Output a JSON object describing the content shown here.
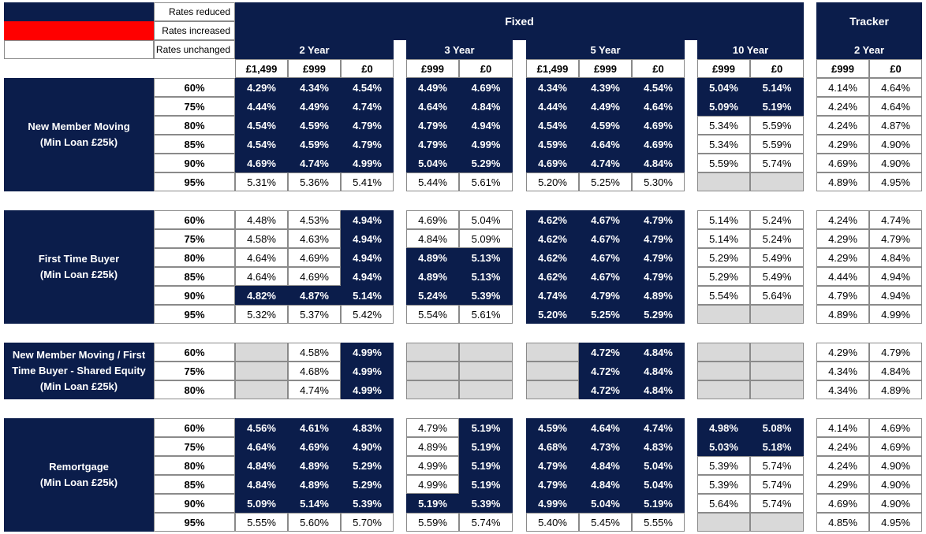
{
  "legend": {
    "reduced": {
      "label": "Rates reduced",
      "color": "#0b1d4b"
    },
    "increased": {
      "label": "Rates increased",
      "color": "#ff0000"
    },
    "unchanged": {
      "label": "Rates unchanged",
      "color": "#ffffff"
    }
  },
  "headers": {
    "fixed": "Fixed",
    "tracker": "Tracker",
    "terms": {
      "fixed2": "2 Year",
      "fixed3": "3 Year",
      "fixed5": "5 Year",
      "fixed10": "10 Year",
      "tracker2": "2 Year"
    },
    "fees": [
      "£1,499",
      "£999",
      "£0",
      "£999",
      "£0",
      "£1,499",
      "£999",
      "£0",
      "£999",
      "£0",
      "£999",
      "£0"
    ]
  },
  "colors": {
    "reduced": "#0b1d4b",
    "unchanged": "#ffffff",
    "not_available": "#d9d9d9"
  },
  "sections": [
    {
      "label": "New Member Moving\n(Min Loan £25k)",
      "rows": [
        {
          "ltv": "60%",
          "rates": [
            "4.29%",
            "4.34%",
            "4.54%",
            "4.49%",
            "4.69%",
            "4.34%",
            "4.39%",
            "4.54%",
            "5.04%",
            "5.14%",
            "4.14%",
            "4.64%"
          ],
          "status": [
            "r",
            "r",
            "r",
            "r",
            "r",
            "r",
            "r",
            "r",
            "r",
            "r",
            "u",
            "u"
          ]
        },
        {
          "ltv": "75%",
          "rates": [
            "4.44%",
            "4.49%",
            "4.74%",
            "4.64%",
            "4.84%",
            "4.44%",
            "4.49%",
            "4.64%",
            "5.09%",
            "5.19%",
            "4.24%",
            "4.64%"
          ],
          "status": [
            "r",
            "r",
            "r",
            "r",
            "r",
            "r",
            "r",
            "r",
            "r",
            "r",
            "u",
            "u"
          ]
        },
        {
          "ltv": "80%",
          "rates": [
            "4.54%",
            "4.59%",
            "4.79%",
            "4.79%",
            "4.94%",
            "4.54%",
            "4.59%",
            "4.69%",
            "5.34%",
            "5.59%",
            "4.24%",
            "4.87%"
          ],
          "status": [
            "r",
            "r",
            "r",
            "r",
            "r",
            "r",
            "r",
            "r",
            "u",
            "u",
            "u",
            "u"
          ]
        },
        {
          "ltv": "85%",
          "rates": [
            "4.54%",
            "4.59%",
            "4.79%",
            "4.79%",
            "4.99%",
            "4.59%",
            "4.64%",
            "4.69%",
            "5.34%",
            "5.59%",
            "4.29%",
            "4.90%"
          ],
          "status": [
            "r",
            "r",
            "r",
            "r",
            "r",
            "r",
            "r",
            "r",
            "u",
            "u",
            "u",
            "u"
          ]
        },
        {
          "ltv": "90%",
          "rates": [
            "4.69%",
            "4.74%",
            "4.99%",
            "5.04%",
            "5.29%",
            "4.69%",
            "4.74%",
            "4.84%",
            "5.59%",
            "5.74%",
            "4.69%",
            "4.90%"
          ],
          "status": [
            "r",
            "r",
            "r",
            "r",
            "r",
            "r",
            "r",
            "r",
            "u",
            "u",
            "u",
            "u"
          ]
        },
        {
          "ltv": "95%",
          "rates": [
            "5.31%",
            "5.36%",
            "5.41%",
            "5.44%",
            "5.61%",
            "5.20%",
            "5.25%",
            "5.30%",
            "",
            "",
            "4.89%",
            "4.95%"
          ],
          "status": [
            "u",
            "u",
            "u",
            "u",
            "u",
            "u",
            "u",
            "u",
            "n",
            "n",
            "u",
            "u"
          ]
        }
      ]
    },
    {
      "label": "First Time Buyer\n(Min Loan £25k)",
      "rows": [
        {
          "ltv": "60%",
          "rates": [
            "4.48%",
            "4.53%",
            "4.94%",
            "4.69%",
            "5.04%",
            "4.62%",
            "4.67%",
            "4.79%",
            "5.14%",
            "5.24%",
            "4.24%",
            "4.74%"
          ],
          "status": [
            "u",
            "u",
            "r",
            "u",
            "u",
            "r",
            "r",
            "r",
            "u",
            "u",
            "u",
            "u"
          ]
        },
        {
          "ltv": "75%",
          "rates": [
            "4.58%",
            "4.63%",
            "4.94%",
            "4.84%",
            "5.09%",
            "4.62%",
            "4.67%",
            "4.79%",
            "5.14%",
            "5.24%",
            "4.29%",
            "4.79%"
          ],
          "status": [
            "u",
            "u",
            "r",
            "u",
            "u",
            "r",
            "r",
            "r",
            "u",
            "u",
            "u",
            "u"
          ]
        },
        {
          "ltv": "80%",
          "rates": [
            "4.64%",
            "4.69%",
            "4.94%",
            "4.89%",
            "5.13%",
            "4.62%",
            "4.67%",
            "4.79%",
            "5.29%",
            "5.49%",
            "4.29%",
            "4.84%"
          ],
          "status": [
            "u",
            "u",
            "r",
            "r",
            "r",
            "r",
            "r",
            "r",
            "u",
            "u",
            "u",
            "u"
          ]
        },
        {
          "ltv": "85%",
          "rates": [
            "4.64%",
            "4.69%",
            "4.94%",
            "4.89%",
            "5.13%",
            "4.62%",
            "4.67%",
            "4.79%",
            "5.29%",
            "5.49%",
            "4.44%",
            "4.94%"
          ],
          "status": [
            "u",
            "u",
            "r",
            "r",
            "r",
            "r",
            "r",
            "r",
            "u",
            "u",
            "u",
            "u"
          ]
        },
        {
          "ltv": "90%",
          "rates": [
            "4.82%",
            "4.87%",
            "5.14%",
            "5.24%",
            "5.39%",
            "4.74%",
            "4.79%",
            "4.89%",
            "5.54%",
            "5.64%",
            "4.79%",
            "4.94%"
          ],
          "status": [
            "r",
            "r",
            "r",
            "r",
            "r",
            "r",
            "r",
            "r",
            "u",
            "u",
            "u",
            "u"
          ]
        },
        {
          "ltv": "95%",
          "rates": [
            "5.32%",
            "5.37%",
            "5.42%",
            "5.54%",
            "5.61%",
            "5.20%",
            "5.25%",
            "5.29%",
            "",
            "",
            "4.89%",
            "4.99%"
          ],
          "status": [
            "u",
            "u",
            "u",
            "u",
            "u",
            "r",
            "r",
            "r",
            "n",
            "n",
            "u",
            "u"
          ]
        }
      ]
    },
    {
      "label": "New Member Moving / First\nTime Buyer - Shared Equity\n(Min Loan £25k)",
      "rows": [
        {
          "ltv": "60%",
          "rates": [
            "",
            "4.58%",
            "4.99%",
            "",
            "",
            "",
            "4.72%",
            "4.84%",
            "",
            "",
            "4.29%",
            "4.79%"
          ],
          "status": [
            "n",
            "u",
            "r",
            "n",
            "n",
            "n",
            "r",
            "r",
            "n",
            "n",
            "u",
            "u"
          ]
        },
        {
          "ltv": "75%",
          "rates": [
            "",
            "4.68%",
            "4.99%",
            "",
            "",
            "",
            "4.72%",
            "4.84%",
            "",
            "",
            "4.34%",
            "4.84%"
          ],
          "status": [
            "n",
            "u",
            "r",
            "n",
            "n",
            "n",
            "r",
            "r",
            "n",
            "n",
            "u",
            "u"
          ]
        },
        {
          "ltv": "80%",
          "rates": [
            "",
            "4.74%",
            "4.99%",
            "",
            "",
            "",
            "4.72%",
            "4.84%",
            "",
            "",
            "4.34%",
            "4.89%"
          ],
          "status": [
            "n",
            "u",
            "r",
            "n",
            "n",
            "n",
            "r",
            "r",
            "n",
            "n",
            "u",
            "u"
          ]
        }
      ]
    },
    {
      "label": "Remortgage\n(Min Loan £25k)",
      "rows": [
        {
          "ltv": "60%",
          "rates": [
            "4.56%",
            "4.61%",
            "4.83%",
            "4.79%",
            "5.19%",
            "4.59%",
            "4.64%",
            "4.74%",
            "4.98%",
            "5.08%",
            "4.14%",
            "4.69%"
          ],
          "status": [
            "r",
            "r",
            "r",
            "u",
            "r",
            "r",
            "r",
            "r",
            "r",
            "r",
            "u",
            "u"
          ]
        },
        {
          "ltv": "75%",
          "rates": [
            "4.64%",
            "4.69%",
            "4.90%",
            "4.89%",
            "5.19%",
            "4.68%",
            "4.73%",
            "4.83%",
            "5.03%",
            "5.18%",
            "4.24%",
            "4.69%"
          ],
          "status": [
            "r",
            "r",
            "r",
            "u",
            "r",
            "r",
            "r",
            "r",
            "r",
            "r",
            "u",
            "u"
          ]
        },
        {
          "ltv": "80%",
          "rates": [
            "4.84%",
            "4.89%",
            "5.29%",
            "4.99%",
            "5.19%",
            "4.79%",
            "4.84%",
            "5.04%",
            "5.39%",
            "5.74%",
            "4.24%",
            "4.90%"
          ],
          "status": [
            "r",
            "r",
            "r",
            "u",
            "r",
            "r",
            "r",
            "r",
            "u",
            "u",
            "u",
            "u"
          ]
        },
        {
          "ltv": "85%",
          "rates": [
            "4.84%",
            "4.89%",
            "5.29%",
            "4.99%",
            "5.19%",
            "4.79%",
            "4.84%",
            "5.04%",
            "5.39%",
            "5.74%",
            "4.29%",
            "4.90%"
          ],
          "status": [
            "r",
            "r",
            "r",
            "u",
            "r",
            "r",
            "r",
            "r",
            "u",
            "u",
            "u",
            "u"
          ]
        },
        {
          "ltv": "90%",
          "rates": [
            "5.09%",
            "5.14%",
            "5.39%",
            "5.19%",
            "5.39%",
            "4.99%",
            "5.04%",
            "5.19%",
            "5.64%",
            "5.74%",
            "4.69%",
            "4.90%"
          ],
          "status": [
            "r",
            "r",
            "r",
            "r",
            "r",
            "r",
            "r",
            "r",
            "u",
            "u",
            "u",
            "u"
          ]
        },
        {
          "ltv": "95%",
          "rates": [
            "5.55%",
            "5.60%",
            "5.70%",
            "5.59%",
            "5.74%",
            "5.40%",
            "5.45%",
            "5.55%",
            "",
            "",
            "4.85%",
            "4.95%"
          ],
          "status": [
            "u",
            "u",
            "u",
            "u",
            "u",
            "u",
            "u",
            "u",
            "n",
            "n",
            "u",
            "u"
          ]
        }
      ]
    }
  ]
}
